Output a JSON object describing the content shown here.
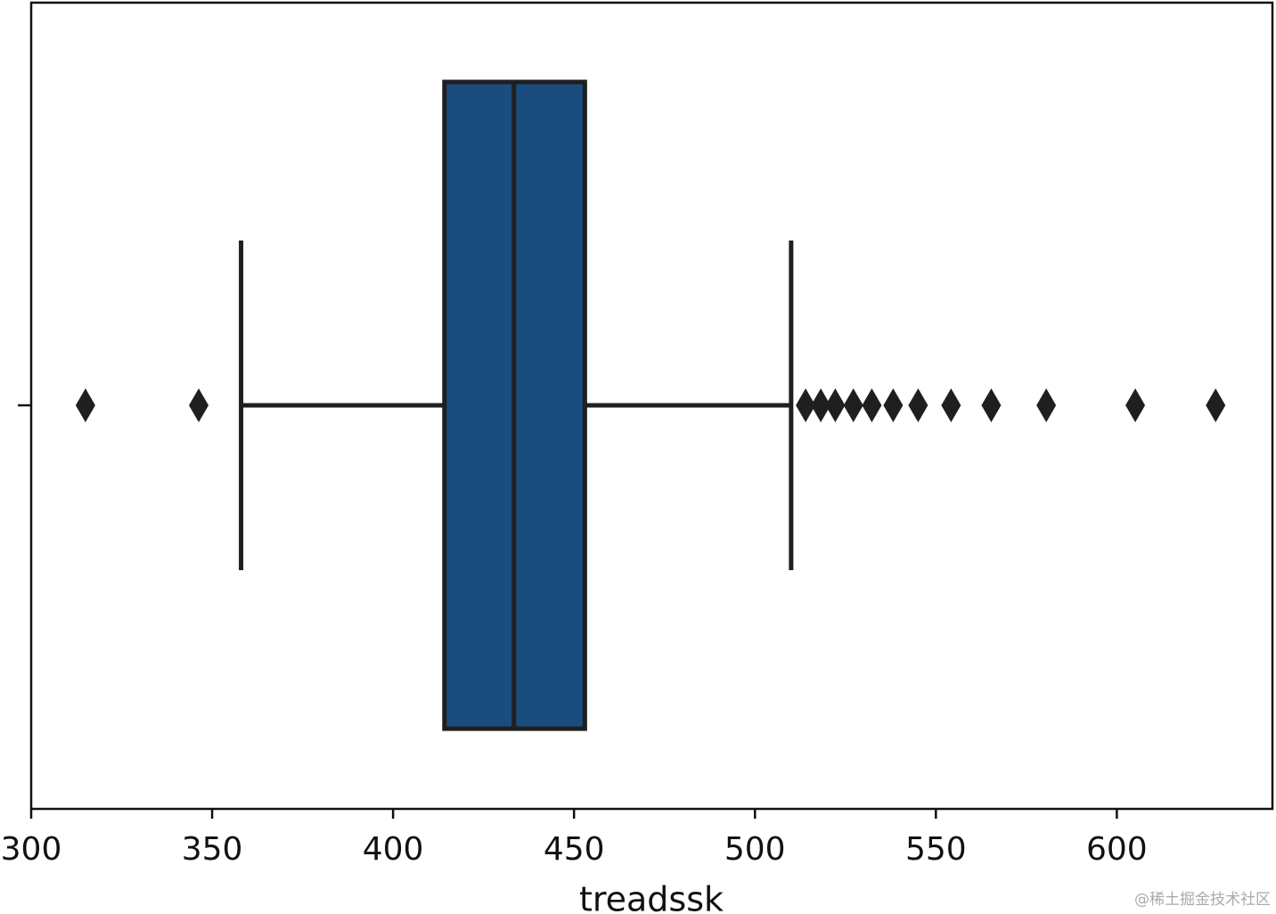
{
  "chart_data": {
    "type": "box",
    "orientation": "horizontal",
    "x_label": "treadssk",
    "color": "#1a4c7e",
    "edge_color": "#1f1f1f",
    "box": {
      "whislo": 358,
      "q1": 414.2,
      "med": 433.4,
      "q3": 453,
      "whishi": 510,
      "fliers": [
        315,
        346.3,
        514,
        518.2,
        522.2,
        527.2,
        532.3,
        538.2,
        545.1,
        554.2,
        565.3,
        580.5,
        605.1,
        627.3
      ]
    },
    "xlim": [
      300,
      643
    ],
    "xticks": [
      300,
      350,
      400,
      450,
      500,
      550,
      600
    ]
  },
  "watermark": "@稀土掘金技术社区"
}
